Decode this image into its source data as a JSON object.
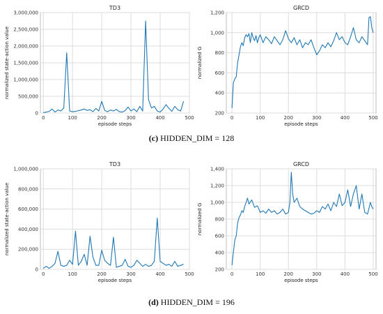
{
  "chart_data": [
    {
      "type": "line",
      "title": "TD3",
      "xlabel": "episode steps",
      "ylabel": "normalized state-action value",
      "xlim": [
        -10,
        500
      ],
      "ylim": [
        0,
        3000000
      ],
      "xticks": [
        0,
        100,
        200,
        300,
        400,
        500
      ],
      "xtick_labels": [
        "0",
        "100",
        "200",
        "300",
        "400",
        "500"
      ],
      "yticks": [
        0,
        500000,
        1000000,
        1500000,
        2000000,
        2500000,
        3000000
      ],
      "ytick_labels": [
        "0",
        "500,000",
        "1,000,000",
        "1,500,000",
        "2,000,000",
        "2,500,000",
        "3,000,000"
      ],
      "grid": true,
      "color": "#1f77b4",
      "x": [
        0,
        10,
        20,
        30,
        40,
        50,
        60,
        70,
        80,
        90,
        100,
        110,
        120,
        130,
        140,
        150,
        160,
        170,
        180,
        190,
        200,
        210,
        220,
        230,
        240,
        250,
        260,
        270,
        280,
        290,
        300,
        310,
        320,
        330,
        340,
        350,
        360,
        370,
        380,
        390,
        400,
        410,
        420,
        430,
        440,
        450,
        460,
        470,
        480
      ],
      "y": [
        10000,
        30000,
        50000,
        120000,
        30000,
        90000,
        60000,
        150000,
        1800000,
        60000,
        40000,
        50000,
        70000,
        90000,
        120000,
        80000,
        100000,
        40000,
        140000,
        60000,
        350000,
        80000,
        40000,
        90000,
        60000,
        110000,
        40000,
        30000,
        70000,
        180000,
        60000,
        120000,
        40000,
        200000,
        60000,
        2750000,
        400000,
        150000,
        200000,
        60000,
        30000,
        120000,
        250000,
        140000,
        50000,
        200000,
        100000,
        60000,
        350000
      ]
    },
    {
      "type": "line",
      "title": "GRCD",
      "xlabel": "episode steps",
      "ylabel": "normalized G",
      "xlim": [
        -20,
        510
      ],
      "ylim": [
        200,
        1200
      ],
      "xticks": [
        0,
        100,
        200,
        300,
        400,
        500
      ],
      "xtick_labels": [
        "0",
        "100",
        "200",
        "300",
        "400",
        "500"
      ],
      "yticks": [
        200,
        400,
        600,
        800,
        1000,
        1200
      ],
      "ytick_labels": [
        "200",
        "400",
        "600",
        "800",
        "1,000",
        "1,200"
      ],
      "grid": true,
      "color": "#1f77b4",
      "x": [
        0,
        5,
        10,
        15,
        20,
        25,
        30,
        35,
        40,
        45,
        50,
        55,
        60,
        65,
        70,
        75,
        80,
        85,
        90,
        95,
        100,
        110,
        120,
        130,
        140,
        150,
        160,
        170,
        180,
        190,
        200,
        210,
        220,
        230,
        240,
        250,
        260,
        270,
        280,
        290,
        300,
        310,
        320,
        330,
        340,
        350,
        360,
        370,
        380,
        390,
        400,
        410,
        420,
        430,
        440,
        450,
        460,
        470,
        480,
        485,
        490,
        495,
        500
      ],
      "y": [
        250,
        500,
        540,
        560,
        700,
        780,
        860,
        900,
        870,
        950,
        980,
        960,
        990,
        900,
        1000,
        950,
        920,
        970,
        900,
        950,
        980,
        900,
        960,
        930,
        890,
        960,
        920,
        880,
        930,
        1020,
        940,
        900,
        950,
        880,
        930,
        850,
        900,
        880,
        930,
        850,
        780,
        820,
        880,
        850,
        900,
        860,
        920,
        1000,
        930,
        960,
        900,
        880,
        960,
        1050,
        930,
        900,
        960,
        920,
        880,
        1150,
        1160,
        1050,
        1000
      ]
    },
    {
      "type": "line",
      "title": "TD3",
      "xlabel": "episode steps",
      "ylabel": "normalized state-action value",
      "xlim": [
        -10,
        500
      ],
      "ylim": [
        0,
        1000000
      ],
      "xticks": [
        0,
        100,
        200,
        300,
        400,
        500
      ],
      "xtick_labels": [
        "0",
        "100",
        "200",
        "300",
        "400",
        "500"
      ],
      "yticks": [
        0,
        200000,
        400000,
        600000,
        800000,
        1000000
      ],
      "ytick_labels": [
        "0",
        "200,000",
        "400,000",
        "600,000",
        "800,000",
        "1,000,000"
      ],
      "grid": true,
      "color": "#1f77b4",
      "x": [
        0,
        10,
        20,
        30,
        40,
        50,
        60,
        70,
        80,
        90,
        100,
        110,
        120,
        130,
        140,
        150,
        160,
        170,
        180,
        190,
        200,
        210,
        220,
        230,
        240,
        250,
        260,
        270,
        280,
        290,
        300,
        310,
        320,
        330,
        340,
        350,
        360,
        370,
        380,
        390,
        400,
        410,
        420,
        430,
        440,
        450,
        460,
        470,
        480
      ],
      "y": [
        10000,
        30000,
        10000,
        30000,
        60000,
        180000,
        40000,
        30000,
        40000,
        90000,
        50000,
        380000,
        40000,
        80000,
        150000,
        40000,
        330000,
        120000,
        40000,
        40000,
        190000,
        90000,
        60000,
        40000,
        320000,
        20000,
        30000,
        40000,
        100000,
        30000,
        20000,
        40000,
        90000,
        60000,
        30000,
        50000,
        30000,
        40000,
        80000,
        510000,
        80000,
        60000,
        40000,
        50000,
        30000,
        80000,
        30000,
        40000,
        50000
      ]
    },
    {
      "type": "line",
      "title": "GRCD",
      "xlabel": "episode steps",
      "ylabel": "normalized G",
      "xlim": [
        -20,
        510
      ],
      "ylim": [
        200,
        1400
      ],
      "xticks": [
        0,
        100,
        200,
        300,
        400,
        500
      ],
      "xtick_labels": [
        "0",
        "100",
        "200",
        "300",
        "400",
        "500"
      ],
      "yticks": [
        200,
        400,
        600,
        800,
        1000,
        1200,
        1400
      ],
      "ytick_labels": [
        "200",
        "400",
        "600",
        "800",
        "1,000",
        "1,200",
        "1,400"
      ],
      "grid": true,
      "color": "#1f77b4",
      "x": [
        0,
        5,
        10,
        15,
        20,
        25,
        30,
        35,
        40,
        45,
        50,
        55,
        60,
        70,
        80,
        90,
        100,
        110,
        120,
        130,
        140,
        150,
        160,
        170,
        180,
        190,
        200,
        205,
        210,
        215,
        220,
        230,
        240,
        250,
        260,
        270,
        280,
        290,
        300,
        310,
        320,
        330,
        340,
        350,
        360,
        370,
        380,
        390,
        400,
        410,
        420,
        430,
        440,
        450,
        460,
        470,
        480,
        490,
        495,
        500
      ],
      "y": [
        250,
        400,
        550,
        600,
        750,
        820,
        850,
        900,
        880,
        950,
        1000,
        1050,
        980,
        1030,
        940,
        960,
        880,
        900,
        870,
        920,
        880,
        900,
        860,
        880,
        920,
        860,
        880,
        1000,
        1360,
        1100,
        1000,
        1050,
        950,
        920,
        900,
        880,
        860,
        870,
        900,
        880,
        950,
        920,
        980,
        900,
        1000,
        950,
        1100,
        960,
        1000,
        1150,
        950,
        1100,
        1200,
        920,
        1100,
        880,
        860,
        1000,
        950,
        920
      ]
    }
  ],
  "captions": [
    {
      "letter": "(c)",
      "text": " HIDDEN_DIM  = 128"
    },
    {
      "letter": "(d)",
      "text": " HIDDEN_DIM  = 196"
    }
  ]
}
